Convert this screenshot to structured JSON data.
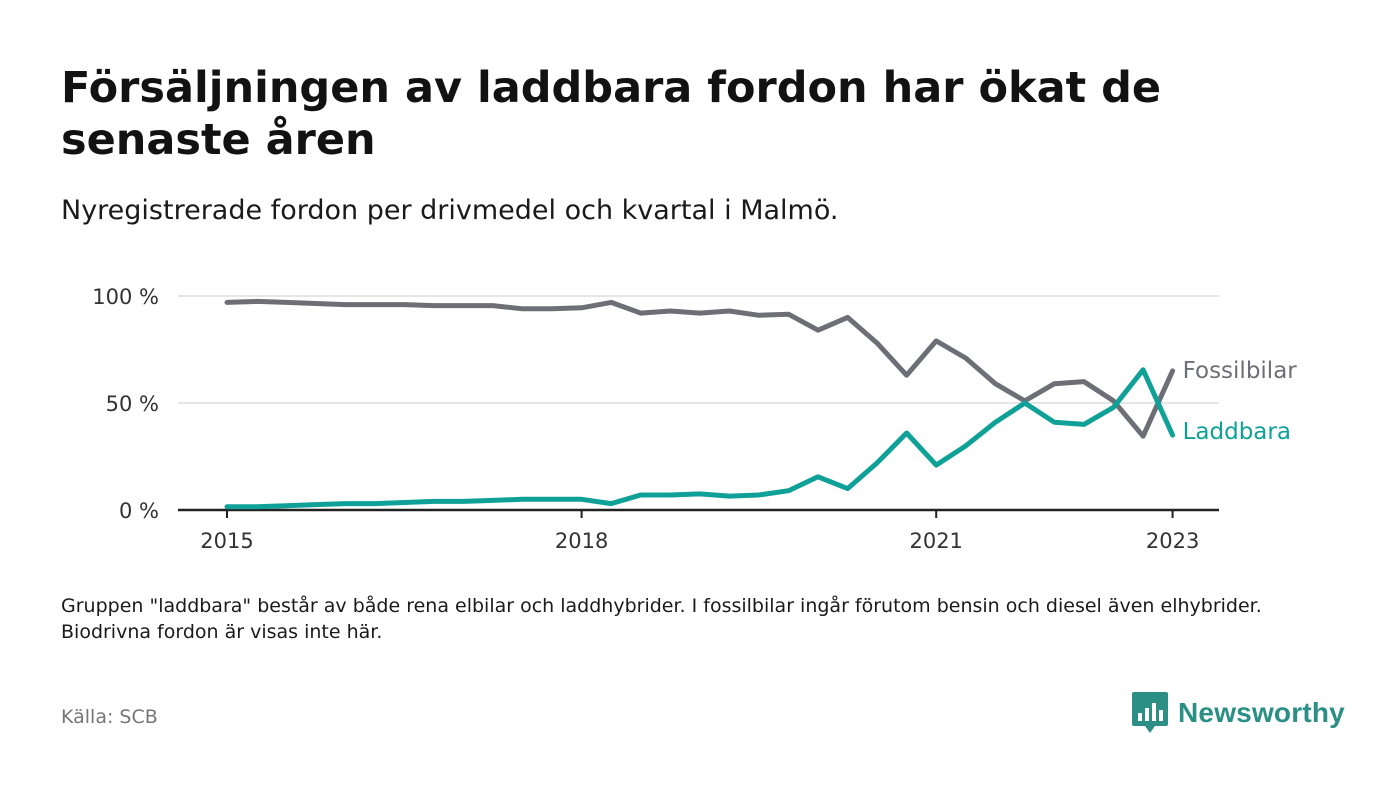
{
  "title": "Försäljningen av laddbara fordon har ökat de senaste åren",
  "subtitle": "Nyregistrerade fordon per drivmedel och kvartal i Malmö.",
  "note": "Gruppen \"laddbara\" består av både rena elbilar och laddhybrider. I fossilbilar ingår förutom bensin och diesel även elhybrider. Biodrivna fordon är visas inte här.",
  "source": "Källa: SCB",
  "brand": "Newsworthy",
  "colors": {
    "fossil": "#6e6e76",
    "laddbara": "#0fa197",
    "brand": "#2b8f86",
    "grid": "#dddddd",
    "axis": "#222222"
  },
  "chart_data": {
    "type": "line",
    "x_unit": "quarter",
    "x_start": "2015 Q1",
    "x_ticks": [
      "2015",
      "2018",
      "2021",
      "2023"
    ],
    "y_ticks": [
      "0 %",
      "50 %",
      "100 %"
    ],
    "ylim": [
      0,
      100
    ],
    "grid": true,
    "legend": "direct labels at line ends",
    "series": [
      {
        "name": "Fossilbilar",
        "color": "#6e6e76",
        "values": [
          97,
          97.5,
          97,
          96.5,
          96,
          96,
          96,
          95.5,
          95.5,
          95.5,
          94,
          94,
          94.5,
          97,
          92,
          93,
          92,
          93,
          91,
          91.5,
          84,
          90,
          78,
          63,
          79,
          71,
          59,
          51,
          59,
          60,
          51,
          34.5,
          65
        ]
      },
      {
        "name": "Laddbara",
        "color": "#0fa197",
        "values": [
          1.5,
          1.5,
          2,
          2.5,
          3,
          3,
          3.5,
          4,
          4,
          4.5,
          5,
          5,
          5,
          3,
          7,
          7,
          7.5,
          6.5,
          7,
          9,
          15.5,
          10,
          22,
          36,
          21,
          30,
          41,
          50,
          41,
          40,
          48,
          65.5,
          35
        ]
      }
    ]
  }
}
